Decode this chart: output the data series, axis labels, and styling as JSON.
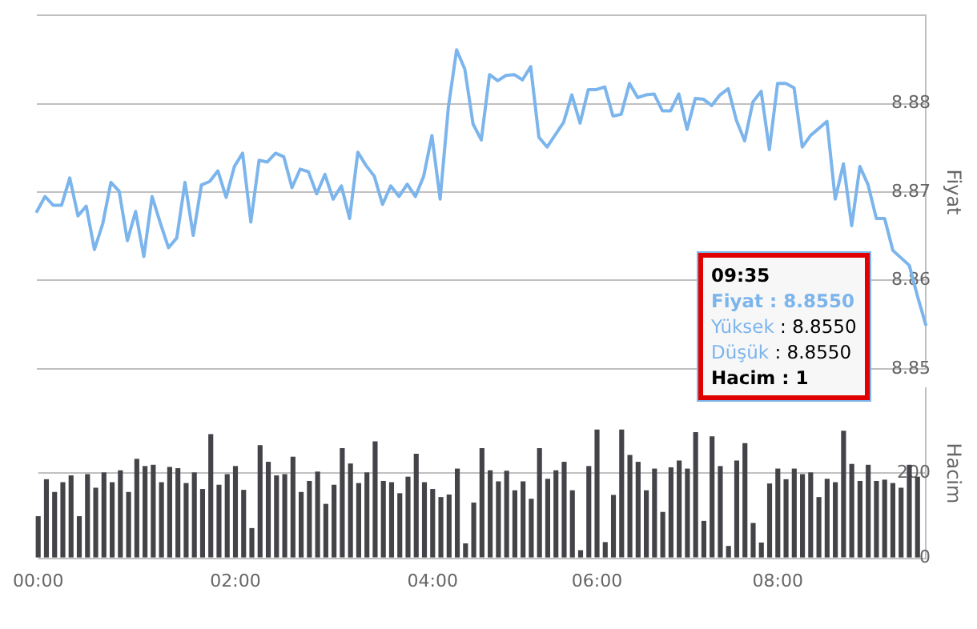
{
  "chart_data": [
    {
      "type": "line",
      "ylabel": "Fiyat",
      "color": "#7cb5ec",
      "marker": "none",
      "grid": "y",
      "tick_labels": "y",
      "categories": [
        null,
        null,
        null,
        null,
        null,
        null,
        null,
        null,
        null,
        null,
        null,
        null,
        null,
        null,
        null,
        null,
        null,
        null,
        null,
        null,
        null,
        null,
        null,
        null,
        null,
        null,
        null,
        null,
        null,
        null,
        null,
        null,
        null,
        null,
        null,
        null,
        null,
        null,
        null,
        null,
        null,
        null,
        null,
        null,
        null,
        null,
        null,
        null,
        null,
        null,
        null,
        null,
        null,
        null,
        null,
        null,
        null,
        null,
        null,
        null,
        null,
        null,
        null,
        null,
        null,
        null,
        null,
        null,
        null,
        null,
        null,
        null,
        null,
        null,
        null,
        null,
        null,
        null,
        null,
        null,
        null,
        null,
        null,
        null,
        null,
        null,
        null,
        null,
        null,
        null,
        null,
        null,
        null,
        null,
        null,
        null,
        null,
        null,
        null,
        null,
        null,
        null,
        null,
        null,
        null,
        null,
        null,
        null,
        null
      ],
      "values": [
        8.8678,
        8.8695,
        8.8685,
        8.8685,
        8.8716,
        8.8673,
        8.8684,
        8.8635,
        8.8664,
        8.8711,
        8.8701,
        8.8645,
        8.8678,
        8.8627,
        8.8695,
        8.8665,
        8.8637,
        8.8648,
        8.8711,
        8.8651,
        8.8708,
        8.8712,
        8.8724,
        8.8694,
        8.8729,
        8.8744,
        8.8666,
        8.8736,
        8.8734,
        8.8744,
        8.874,
        8.8705,
        8.8726,
        8.8723,
        8.8698,
        8.872,
        8.8692,
        8.8707,
        8.867,
        8.8745,
        8.873,
        8.8718,
        8.8686,
        8.8707,
        8.8695,
        8.8709,
        8.8695,
        8.8718,
        8.8764,
        8.8692,
        8.8796,
        8.8861,
        8.8839,
        8.8777,
        8.8759,
        8.8833,
        8.8826,
        8.8832,
        8.8833,
        8.8827,
        8.8842,
        8.8762,
        8.8751,
        8.8765,
        8.8779,
        8.881,
        8.8778,
        8.8816,
        8.8816,
        8.8819,
        8.8786,
        8.8788,
        8.8823,
        8.8807,
        8.881,
        8.8811,
        8.8792,
        8.8792,
        8.8811,
        8.8771,
        8.8806,
        8.8805,
        8.8798,
        8.881,
        8.8817,
        8.8781,
        8.8758,
        8.8802,
        8.8814,
        8.8748,
        8.8823,
        8.8823,
        8.8818,
        8.8751,
        8.8764,
        8.8772,
        8.878,
        8.8692,
        8.8732,
        8.8662,
        8.8729,
        8.8708,
        8.867,
        8.867,
        8.8634,
        null,
        8.8617,
        8.8582,
        8.855
      ],
      "ylim": [
        8.85,
        8.89
      ],
      "yticks": [
        8.85,
        8.86,
        8.87,
        8.88,
        {
          "value": 8.89,
          "label": null
        }
      ],
      "annotations": [
        "09:35\nFiyat : 8.8550\nYüksek : 8.8550\nDüşük : 8.8550\nHacim : 1"
      ]
    },
    {
      "type": "bar",
      "ylabel": "Hacim",
      "color": "#434348",
      "grid": "y",
      "categories": [
        "00:00",
        null,
        null,
        null,
        null,
        null,
        null,
        null,
        null,
        null,
        null,
        null,
        null,
        null,
        null,
        null,
        null,
        null,
        null,
        null,
        null,
        null,
        null,
        null,
        "02:00",
        null,
        null,
        null,
        null,
        null,
        null,
        null,
        null,
        null,
        null,
        null,
        null,
        null,
        null,
        null,
        null,
        null,
        null,
        null,
        null,
        null,
        null,
        null,
        "04:00",
        null,
        null,
        null,
        null,
        null,
        null,
        null,
        null,
        null,
        null,
        null,
        null,
        null,
        null,
        null,
        null,
        null,
        null,
        null,
        "06:00",
        null,
        null,
        null,
        null,
        null,
        null,
        null,
        null,
        null,
        null,
        null,
        null,
        null,
        null,
        null,
        null,
        null,
        null,
        null,
        null,
        null,
        "08:00",
        null,
        null,
        null,
        null,
        null,
        null,
        null,
        null,
        null,
        null,
        null,
        null,
        null,
        null,
        null,
        null,
        null,
        null
      ],
      "values": [
        99,
        186,
        156,
        179,
        195,
        99,
        198,
        166,
        202,
        179,
        207,
        156,
        234,
        217,
        220,
        179,
        215,
        212,
        177,
        202,
        163,
        292,
        173,
        198,
        217,
        161,
        71,
        266,
        227,
        195,
        198,
        239,
        156,
        182,
        204,
        128,
        173,
        259,
        223,
        177,
        202,
        275,
        182,
        179,
        153,
        192,
        246,
        179,
        163,
        144,
        150,
        211,
        35,
        131,
        259,
        207,
        181,
        206,
        160,
        181,
        140,
        259,
        187,
        207,
        227,
        160,
        19,
        217,
        303,
        38,
        149,
        303,
        243,
        227,
        160,
        211,
        109,
        214,
        230,
        211,
        297,
        88,
        287,
        217,
        29,
        230,
        271,
        83,
        37,
        176,
        211,
        186,
        211,
        198,
        202,
        144,
        187,
        179,
        300,
        222,
        182,
        220,
        182,
        185,
        177,
        166,
        220,
        192,
        null
      ],
      "ylim": [
        0,
        400
      ],
      "yticks": [
        0,
        200
      ]
    }
  ]
}
